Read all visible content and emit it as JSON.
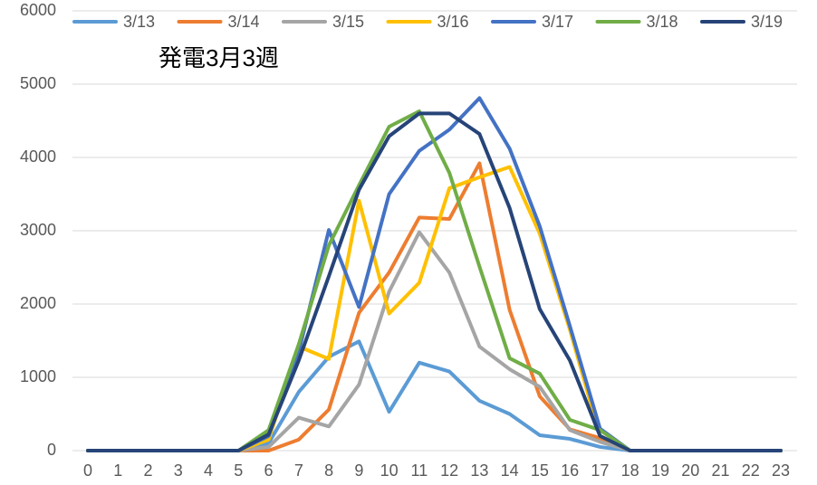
{
  "chart_data": {
    "type": "line",
    "title": "発電3月3週",
    "categories": [
      "0",
      "1",
      "2",
      "3",
      "4",
      "5",
      "6",
      "7",
      "8",
      "9",
      "10",
      "11",
      "12",
      "13",
      "14",
      "15",
      "16",
      "17",
      "18",
      "19",
      "20",
      "21",
      "22",
      "23"
    ],
    "series": [
      {
        "name": "3/13",
        "color": "#5b9bd5",
        "values": [
          0,
          0,
          0,
          0,
          0,
          0,
          100,
          800,
          1280,
          1490,
          530,
          1200,
          1080,
          680,
          500,
          210,
          160,
          50,
          0,
          0,
          0,
          0,
          0,
          0
        ]
      },
      {
        "name": "3/14",
        "color": "#ed7d31",
        "values": [
          0,
          0,
          0,
          0,
          0,
          0,
          0,
          150,
          560,
          1880,
          2430,
          3180,
          3160,
          3920,
          1920,
          740,
          290,
          170,
          0,
          0,
          0,
          0,
          0,
          0
        ]
      },
      {
        "name": "3/15",
        "color": "#a5a5a5",
        "values": [
          0,
          0,
          0,
          0,
          0,
          0,
          50,
          450,
          330,
          900,
          2170,
          2980,
          2430,
          1420,
          1110,
          870,
          280,
          120,
          0,
          0,
          0,
          0,
          0,
          0
        ]
      },
      {
        "name": "3/16",
        "color": "#ffc000",
        "values": [
          0,
          0,
          0,
          0,
          0,
          0,
          150,
          1420,
          1250,
          3410,
          1870,
          2290,
          3580,
          3730,
          3870,
          2960,
          1650,
          200,
          0,
          0,
          0,
          0,
          0,
          0
        ]
      },
      {
        "name": "3/17",
        "color": "#4472c4",
        "values": [
          0,
          0,
          0,
          0,
          0,
          0,
          200,
          1350,
          3010,
          1960,
          3500,
          4090,
          4380,
          4810,
          4120,
          3060,
          1700,
          300,
          0,
          0,
          0,
          0,
          0,
          0
        ]
      },
      {
        "name": "3/18",
        "color": "#70ad47",
        "values": [
          0,
          0,
          0,
          0,
          0,
          0,
          280,
          1450,
          2800,
          3620,
          4420,
          4630,
          3790,
          2510,
          1260,
          1050,
          420,
          280,
          0,
          0,
          0,
          0,
          0,
          0
        ]
      },
      {
        "name": "3/19",
        "color": "#264478",
        "values": [
          0,
          0,
          0,
          0,
          0,
          0,
          220,
          1230,
          2380,
          3560,
          4290,
          4600,
          4600,
          4320,
          3310,
          1930,
          1230,
          200,
          0,
          0,
          0,
          0,
          0,
          0
        ]
      }
    ],
    "ylim": [
      0,
      6000
    ],
    "yticks": [
      0,
      1000,
      2000,
      3000,
      4000,
      5000,
      6000
    ],
    "grid": true
  }
}
